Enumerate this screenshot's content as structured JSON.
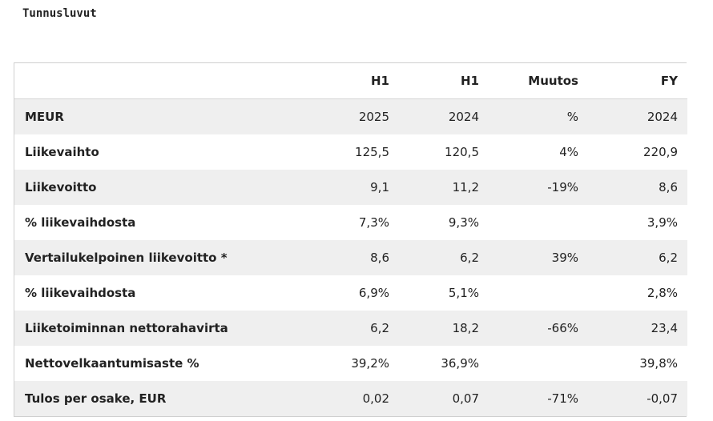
{
  "page": {
    "title": "Tunnusluvut"
  },
  "table": {
    "header": [
      "",
      "H1",
      "H1",
      "Muutos",
      "FY"
    ],
    "rows": [
      [
        "MEUR",
        "2025",
        "2024",
        "%",
        "2024"
      ],
      [
        "Liikevaihto",
        "125,5",
        "120,5",
        "4%",
        "220,9"
      ],
      [
        "Liikevoitto",
        "9,1",
        "11,2",
        "-19%",
        "8,6"
      ],
      [
        "% liikevaihdosta",
        "7,3%",
        "9,3%",
        "",
        "3,9%"
      ],
      [
        "Vertailukelpoinen liikevoitto *",
        "8,6",
        "6,2",
        "39%",
        "6,2"
      ],
      [
        "% liikevaihdosta",
        "6,9%",
        "5,1%",
        "",
        "2,8%"
      ],
      [
        "Liiketoiminnan nettorahavirta",
        "6,2",
        "18,2",
        "-66%",
        "23,4"
      ],
      [
        "Nettovelkaantumisaste %",
        "39,2%",
        "36,9%",
        "",
        "39,8%"
      ],
      [
        "Tulos per osake, EUR",
        "0,02",
        "0,07",
        "-71%",
        "-0,07"
      ]
    ]
  },
  "colors": {
    "stripe": "#efefef",
    "border": "#cfcfcf",
    "text": "#222222"
  }
}
